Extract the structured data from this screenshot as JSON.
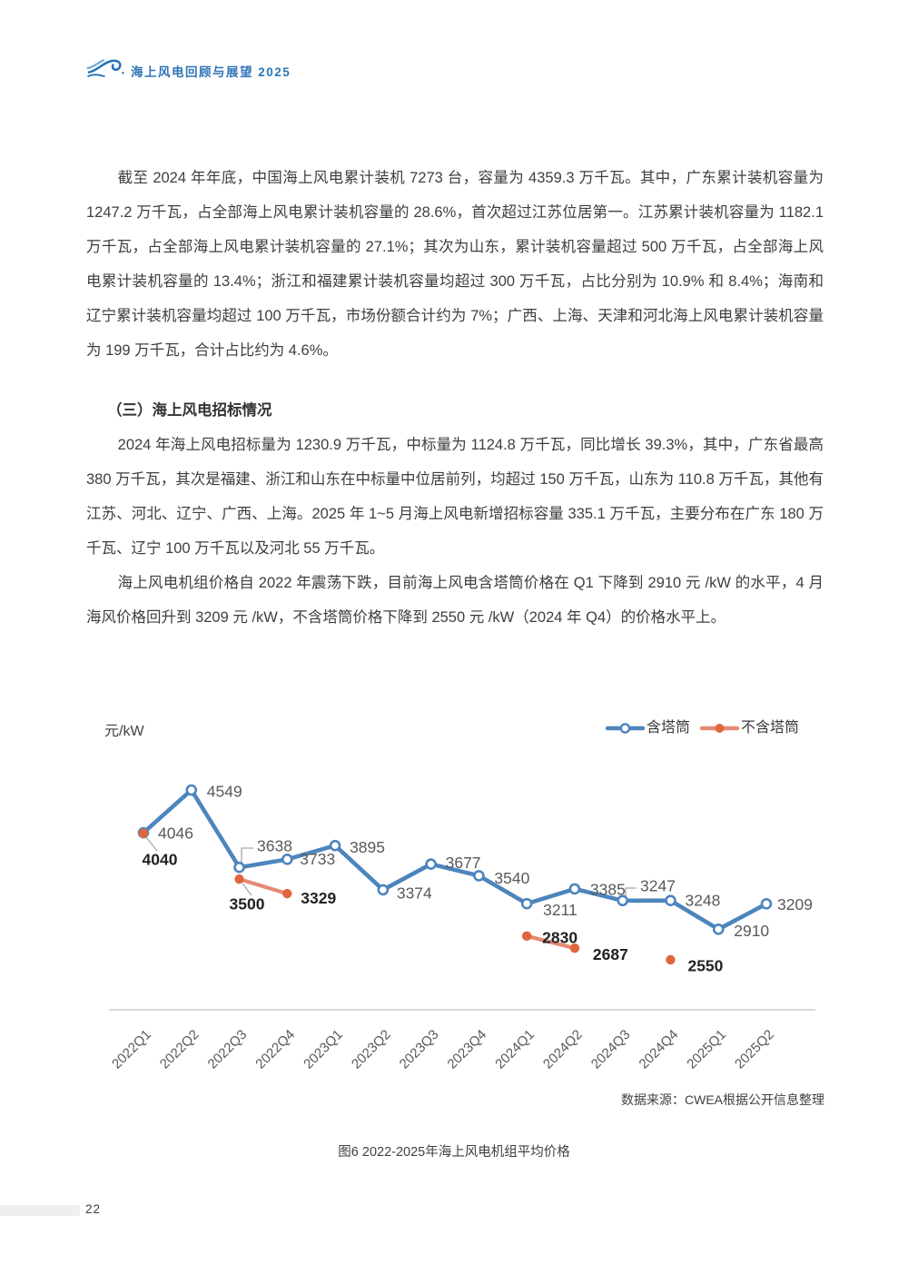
{
  "header": {
    "brand": "海上风电回顾与展望 2025"
  },
  "content": {
    "para1": "截至 2024 年年底，中国海上风电累计装机 7273 台，容量为 4359.3 万千瓦。其中，广东累计装机容量为 1247.2 万千瓦，占全部海上风电累计装机容量的 28.6%，首次超过江苏位居第一。江苏累计装机容量为 1182.1 万千瓦，占全部海上风电累计装机容量的 27.1%；其次为山东，累计装机容量超过 500 万千瓦，占全部海上风电累计装机容量的 13.4%；浙江和福建累计装机容量均超过 300 万千瓦，占比分别为 10.9% 和 8.4%；海南和辽宁累计装机容量均超过 100 万千瓦，市场份额合计约为 7%；广西、上海、天津和河北海上风电累计装机容量为 199 万千瓦，合计占比约为 4.6%。",
    "section_heading": "（三）海上风电招标情况",
    "para2": "2024 年海上风电招标量为 1230.9 万千瓦，中标量为 1124.8 万千瓦，同比增长 39.3%，其中，广东省最高 380 万千瓦，其次是福建、浙江和山东在中标量中位居前列，均超过 150 万千瓦，山东为 110.8 万千瓦，其他有江苏、河北、辽宁、广西、上海。2025 年 1~5 月海上风电新增招标容量 335.1 万千瓦，主要分布在广东 180 万千瓦、辽宁 100 万千瓦以及河北 55 万千瓦。",
    "para3": "海上风电机组价格自 2022 年震荡下跌，目前海上风电含塔筒价格在 Q1 下降到 2910 元 /kW 的水平，4 月海风价格回升到 3209 元 /kW，不含塔筒价格下降到 2550 元 /kW（2024 年 Q4）的价格水平上。"
  },
  "chart": {
    "unit_label": "元/kW",
    "source_note": "数据来源：CWEA根据公开信息整理",
    "caption": "图6 2022-2025年海上风电机组平均价格"
  },
  "chart_data": {
    "type": "line",
    "title": "图6 2022-2025年海上风电机组平均价格",
    "ylabel": "元/kW",
    "xlabel": "",
    "ylim": [
      2400,
      4800
    ],
    "grid": false,
    "legend_position": "top-right",
    "categories": [
      "2022Q1",
      "2022Q2",
      "2022Q3",
      "2022Q4",
      "2023Q1",
      "2023Q2",
      "2023Q3",
      "2023Q4",
      "2024Q1",
      "2024Q2",
      "2024Q3",
      "2024Q4",
      "2025Q1",
      "2025Q2"
    ],
    "series": [
      {
        "name": "含塔筒",
        "marker": "open",
        "color": "#4d85bd",
        "line_color": "#4d85bd",
        "label_color": "#595959",
        "values": [
          4046,
          4549,
          3638,
          3733,
          3895,
          3374,
          3677,
          3540,
          3211,
          3385,
          3247,
          3248,
          2910,
          3209
        ]
      },
      {
        "name": "不含塔筒",
        "marker": "filled",
        "color": "#e0663d",
        "line_color": "#e58a74",
        "label_color": "#222222",
        "values": [
          4040,
          null,
          3500,
          3329,
          null,
          null,
          null,
          null,
          2830,
          2687,
          null,
          2550,
          null,
          null
        ]
      }
    ]
  },
  "footer": {
    "page_number": "22"
  }
}
